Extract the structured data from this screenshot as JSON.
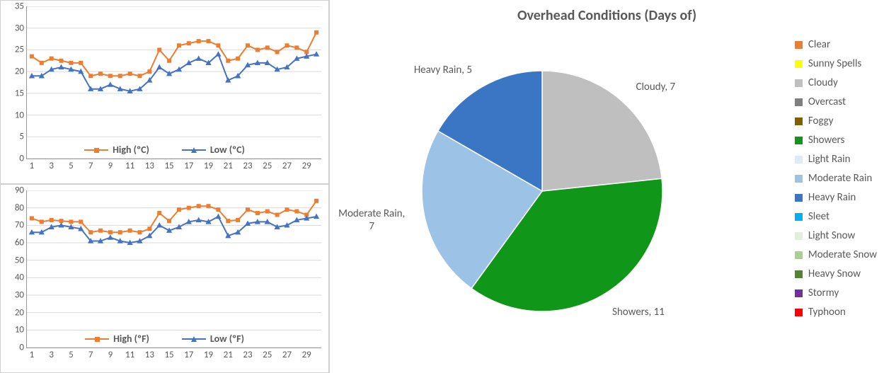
{
  "celsius_chart": {
    "type": "line",
    "x": [
      1,
      2,
      3,
      4,
      5,
      6,
      7,
      8,
      9,
      10,
      11,
      12,
      13,
      14,
      15,
      16,
      17,
      18,
      19,
      20,
      21,
      22,
      23,
      24,
      25,
      26,
      27,
      28,
      29,
      30
    ],
    "xtick_labels": [
      "1",
      "3",
      "5",
      "7",
      "9",
      "11",
      "13",
      "15",
      "17",
      "19",
      "21",
      "23",
      "25",
      "27",
      "29"
    ],
    "xtick_positions": [
      1,
      3,
      5,
      7,
      9,
      11,
      13,
      15,
      17,
      19,
      21,
      23,
      25,
      27,
      29
    ],
    "ylim": [
      0,
      35
    ],
    "ytick_step": 5,
    "yticks": [
      0,
      5,
      10,
      15,
      20,
      25,
      30,
      35
    ],
    "grid_color": "#d9d9d9",
    "axis_color": "#808080",
    "background_color": "#ffffff",
    "label_fontsize": 13,
    "legend_fontsize": 14,
    "series": [
      {
        "name": "High (ºC)",
        "legend_label": "High (ºC)",
        "color": "#ed7d31",
        "marker": "square",
        "marker_size": 6,
        "line_width": 2,
        "values": [
          23.5,
          22,
          23,
          22.5,
          22,
          22,
          19,
          19.5,
          19,
          19,
          19.5,
          19,
          20,
          25,
          22.5,
          26,
          26.5,
          27,
          27,
          26,
          22.5,
          23,
          26,
          25,
          25.5,
          24.5,
          26,
          25.5,
          24.5,
          29
        ]
      },
      {
        "name": "Low (ºC)",
        "legend_label": "Low (ºC)",
        "color": "#4472c4",
        "marker": "triangle",
        "marker_size": 7,
        "line_width": 2,
        "values": [
          19,
          19,
          20.5,
          21,
          20.5,
          20,
          16,
          16,
          17,
          16,
          15.5,
          16,
          18,
          21,
          19.5,
          20.5,
          22,
          23,
          22,
          24,
          18,
          19,
          21.5,
          22,
          22,
          20.5,
          21,
          23,
          23.5,
          24
        ]
      }
    ]
  },
  "fahrenheit_chart": {
    "type": "line",
    "x": [
      1,
      2,
      3,
      4,
      5,
      6,
      7,
      8,
      9,
      10,
      11,
      12,
      13,
      14,
      15,
      16,
      17,
      18,
      19,
      20,
      21,
      22,
      23,
      24,
      25,
      26,
      27,
      28,
      29,
      30
    ],
    "xtick_labels": [
      "1",
      "3",
      "5",
      "7",
      "9",
      "11",
      "13",
      "15",
      "17",
      "19",
      "21",
      "23",
      "25",
      "27",
      "29"
    ],
    "xtick_positions": [
      1,
      3,
      5,
      7,
      9,
      11,
      13,
      15,
      17,
      19,
      21,
      23,
      25,
      27,
      29
    ],
    "ylim": [
      0,
      90
    ],
    "ytick_step": 10,
    "yticks": [
      0,
      10,
      20,
      30,
      40,
      50,
      60,
      70,
      80,
      90
    ],
    "grid_color": "#d9d9d9",
    "axis_color": "#808080",
    "background_color": "#ffffff",
    "label_fontsize": 13,
    "legend_fontsize": 14,
    "series": [
      {
        "name": "High (ºF)",
        "legend_label": "High (ºF)",
        "color": "#ed7d31",
        "marker": "square",
        "marker_size": 6,
        "line_width": 2,
        "values": [
          74,
          72,
          73,
          72.5,
          72,
          72,
          66,
          67,
          66,
          66,
          67,
          66,
          68,
          77,
          72.5,
          79,
          80,
          81,
          81,
          79,
          72.5,
          73,
          79,
          77,
          78,
          76,
          79,
          78,
          76,
          84
        ]
      },
      {
        "name": "Low (ºF)",
        "legend_label": "Low (ºF)",
        "color": "#4472c4",
        "marker": "triangle",
        "marker_size": 7,
        "line_width": 2,
        "values": [
          66,
          66,
          69,
          70,
          69,
          68,
          61,
          61,
          63,
          61,
          60,
          61,
          64,
          70,
          67,
          69,
          72,
          73,
          72,
          75,
          64,
          66,
          71,
          72,
          72,
          69,
          70,
          73,
          74,
          75
        ]
      }
    ]
  },
  "pie_chart": {
    "type": "pie",
    "title": "Overhead Conditions (Days of)",
    "title_fontsize": 20,
    "background_color": "#ffffff",
    "label_fontsize": 15,
    "start_angle_deg": -90,
    "slices": [
      {
        "name": "Cloudy",
        "value": 7,
        "color": "#bfbfbf",
        "label": "Cloudy, 7"
      },
      {
        "name": "Showers",
        "value": 11,
        "color": "#109618",
        "label": "Showers, 11"
      },
      {
        "name": "Moderate Rain",
        "value": 7,
        "color": "#9cc2e5",
        "label": "Moderate Rain,\n7"
      },
      {
        "name": "Heavy Rain",
        "value": 5,
        "color": "#3a76c4",
        "label": "Heavy Rain, 5"
      }
    ],
    "legend_items": [
      {
        "label": "Clear",
        "color": "#ed7d31"
      },
      {
        "label": "Sunny Spells",
        "color": "#ffff00"
      },
      {
        "label": "Cloudy",
        "color": "#bfbfbf"
      },
      {
        "label": "Overcast",
        "color": "#7f7f7f"
      },
      {
        "label": "Foggy",
        "color": "#7f6000"
      },
      {
        "label": "Showers",
        "color": "#109618"
      },
      {
        "label": "Light Rain",
        "color": "#deebf7"
      },
      {
        "label": "Moderate Rain",
        "color": "#9cc2e5"
      },
      {
        "label": "Heavy Rain",
        "color": "#3a76c4"
      },
      {
        "label": "Sleet",
        "color": "#00b0f0"
      },
      {
        "label": "Light Snow",
        "color": "#e2efda"
      },
      {
        "label": "Moderate Snow",
        "color": "#a9d08e"
      },
      {
        "label": "Heavy Snow",
        "color": "#548235"
      },
      {
        "label": "Stormy",
        "color": "#7030a0"
      },
      {
        "label": "Typhoon",
        "color": "#ff0000"
      }
    ]
  }
}
